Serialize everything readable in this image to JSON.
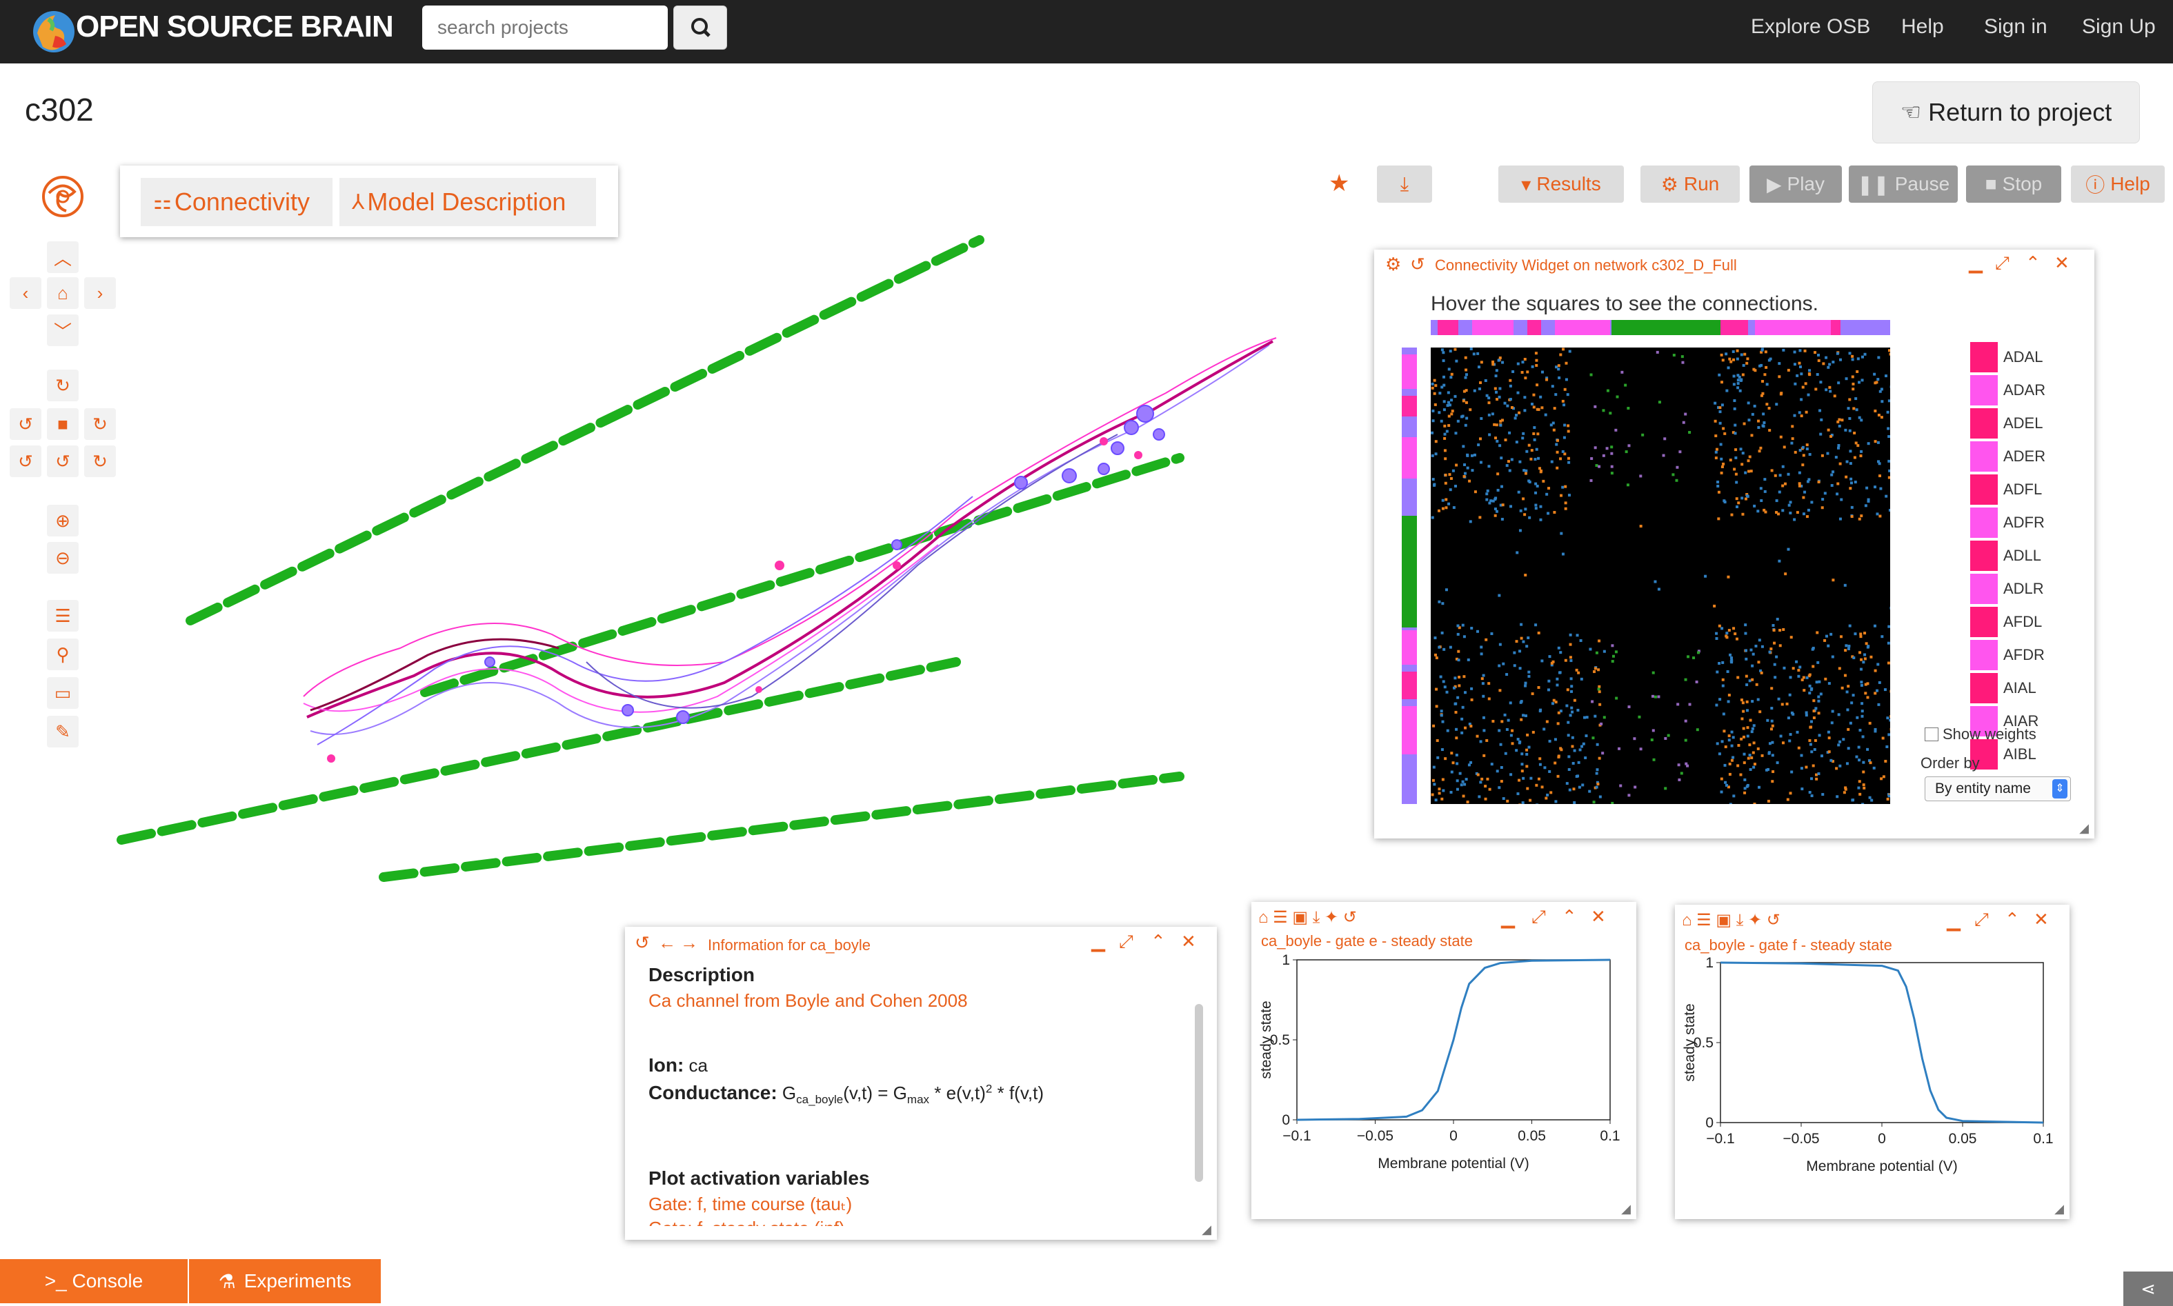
{
  "navbar": {
    "brand": "OPEN SOURCE BRAIN",
    "search_placeholder": "search projects",
    "links": [
      "Explore OSB",
      "Help",
      "Sign in",
      "Sign Up"
    ]
  },
  "page_title": "c302",
  "return_button": "Return to project",
  "tabs": [
    "Connectivity",
    "Model Description"
  ],
  "toolbar": {
    "results": "Results",
    "run": "Run",
    "play": "Play",
    "pause": "Pause",
    "stop": "Stop",
    "help": "Help"
  },
  "connectivity_widget": {
    "title": "Connectivity Widget on network c302_D_Full",
    "hint": "Hover the squares to see the connections.",
    "neurons": [
      "ADAL",
      "ADAR",
      "ADEL",
      "ADER",
      "ADFL",
      "ADFR",
      "ADLL",
      "ADLR",
      "AFDL",
      "AFDR",
      "AIAL",
      "AIAR",
      "AIBL"
    ],
    "show_weights_label": "Show weights",
    "order_by_label": "Order by",
    "order_by_value": "By entity name",
    "colors": {
      "magenta": "#ff2aa5",
      "pink": "#ff55ee",
      "violet": "#9b7bff",
      "green": "#1aa01a"
    }
  },
  "info_widget": {
    "title": "Information for ca_boyle",
    "description_label": "Description",
    "description_value": "Ca channel from Boyle and Cohen 2008",
    "ion_label": "Ion:",
    "ion_value": "ca",
    "conductance_label": "Conductance:",
    "plot_label": "Plot activation variables",
    "links": [
      "Gate: f, time course (tauₜ)",
      "Gate: f, steady state (inf)"
    ]
  },
  "plot_e": {
    "title": "ca_boyle - gate e - steady state",
    "chart_data": {
      "type": "line",
      "xlabel": "Membrane potential (V)",
      "ylabel": "steady state",
      "xlim": [
        -0.1,
        0.1
      ],
      "ylim": [
        0,
        1
      ],
      "x_ticks": [
        "−0.1",
        "−0.05",
        "0",
        "0.05",
        "0.1"
      ],
      "y_ticks": [
        "0",
        "0.5",
        "1"
      ],
      "x": [
        -0.1,
        -0.06,
        -0.03,
        -0.02,
        -0.01,
        0,
        0.005,
        0.01,
        0.02,
        0.03,
        0.05,
        0.1
      ],
      "values": [
        0.0,
        0.005,
        0.02,
        0.06,
        0.18,
        0.5,
        0.7,
        0.85,
        0.95,
        0.98,
        0.995,
        1.0
      ]
    }
  },
  "plot_f": {
    "title": "ca_boyle - gate f - steady state",
    "chart_data": {
      "type": "line",
      "xlabel": "Membrane potential (V)",
      "ylabel": "steady state",
      "xlim": [
        -0.1,
        0.1
      ],
      "ylim": [
        0,
        1
      ],
      "x_ticks": [
        "−0.1",
        "−0.05",
        "0",
        "0.05",
        "0.1"
      ],
      "y_ticks": [
        "0",
        "0.5",
        "1"
      ],
      "x": [
        -0.1,
        -0.05,
        0,
        0.01,
        0.015,
        0.02,
        0.025,
        0.03,
        0.035,
        0.04,
        0.05,
        0.1
      ],
      "values": [
        1.0,
        0.995,
        0.98,
        0.95,
        0.85,
        0.65,
        0.4,
        0.2,
        0.08,
        0.03,
        0.01,
        0.0
      ]
    }
  },
  "footer": {
    "console": ">_ Console",
    "experiments": "Experiments"
  }
}
